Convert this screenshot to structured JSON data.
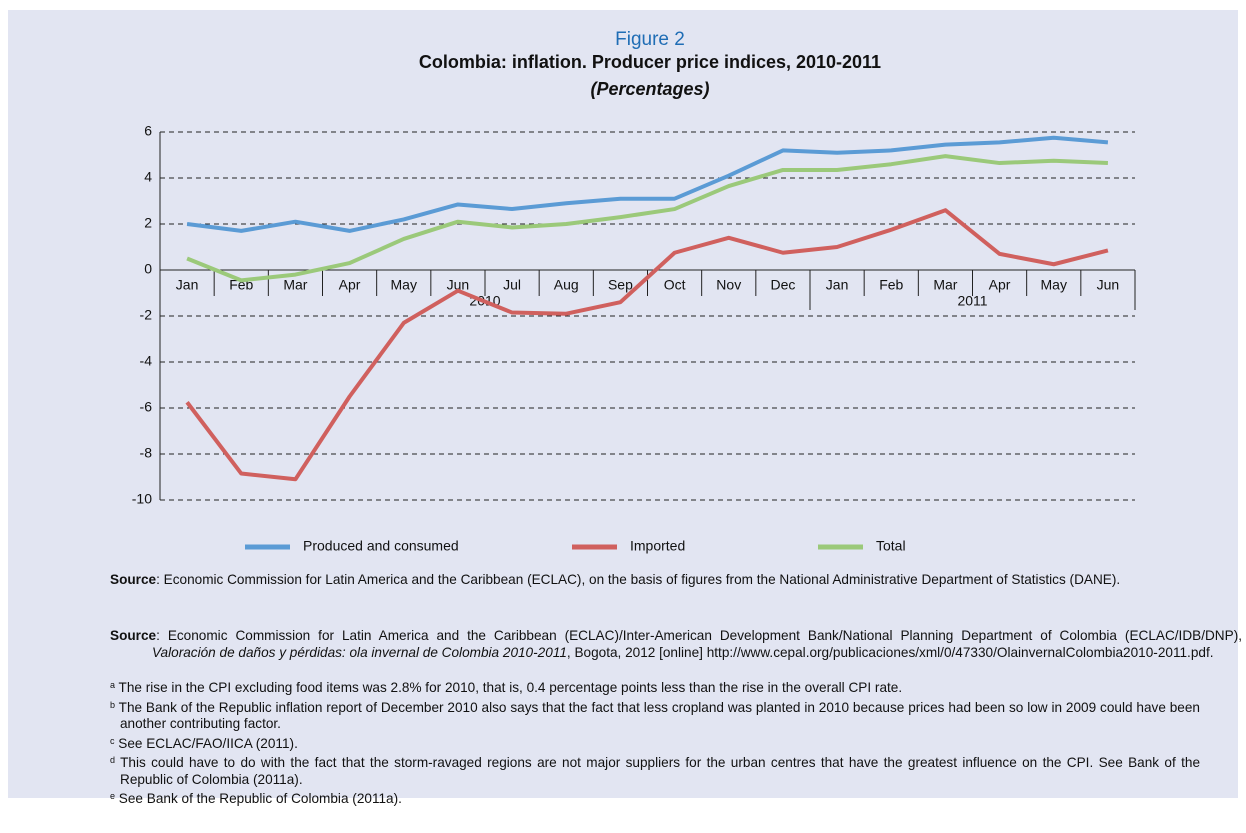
{
  "chart_data": {
    "type": "line",
    "label": "Figure 2",
    "title": "Colombia: inflation. Producer price indices, 2010-2011",
    "subtitle": "(Percentages)",
    "groups": [
      {
        "name": "2010",
        "categories": [
          "Jan",
          "Feb",
          "Mar",
          "Apr",
          "May",
          "Jun",
          "Jul",
          "Aug",
          "Sep",
          "Oct",
          "Nov",
          "Dec"
        ]
      },
      {
        "name": "2011",
        "categories": [
          "Jan",
          "Feb",
          "Mar",
          "Apr",
          "May",
          "Jun"
        ]
      }
    ],
    "series": [
      {
        "name": "Produced and consumed",
        "color": "#5b9bd5",
        "values": [
          2.0,
          1.7,
          2.1,
          1.7,
          2.2,
          2.85,
          2.65,
          2.9,
          3.1,
          3.1,
          4.1,
          5.2,
          5.1,
          5.2,
          5.45,
          5.55,
          5.75,
          5.55
        ]
      },
      {
        "name": "Imported",
        "color": "#d0605e",
        "values": [
          -5.75,
          -8.85,
          -9.1,
          -5.5,
          -2.3,
          -0.9,
          -1.85,
          -1.9,
          -1.4,
          0.75,
          1.4,
          0.75,
          1.0,
          1.75,
          2.6,
          0.7,
          0.25,
          0.85
        ]
      },
      {
        "name": "Total",
        "color": "#9bc97a",
        "values": [
          0.5,
          -0.45,
          -0.2,
          0.3,
          1.35,
          2.1,
          1.85,
          2.0,
          2.3,
          2.65,
          3.65,
          4.35,
          4.35,
          4.6,
          4.95,
          4.65,
          4.75,
          4.65
        ]
      }
    ],
    "ylim": [
      -10,
      6
    ],
    "yticks": [
      -10,
      -8,
      -6,
      -4,
      -2,
      0,
      2,
      4,
      6
    ],
    "grid": true,
    "legend": "bottom"
  },
  "source1": {
    "label": "Source",
    "text": ": Economic Commission for Latin America and the Caribbean (ECLAC), on the basis of figures from the National Administrative Department of Statistics (DANE)."
  },
  "source2": {
    "label": "Source",
    "before": ": Economic Commission for Latin America and the Caribbean (ECLAC)/Inter-American Development Bank/National Planning Department of Colombia (ECLAC/IDB/DNP), ",
    "title": "Valoración de daños y pérdidas: ola invernal de Colombia 2010-2011",
    "after": ", Bogota, 2012 [online] http://www.cepal.org/publicaciones/xml/0/47330/OlainvernalColombia2010-2011.pdf."
  },
  "notes": [
    {
      "mark": "a",
      "text": "The rise in the CPI excluding food items was 2.8% for 2010, that is, 0.4 percentage points less than the rise in the overall CPI rate."
    },
    {
      "mark": "b",
      "text": "The Bank of the Republic inflation report of December 2010 also says that the fact that less cropland was planted in 2010 because prices had been so low in 2009 could have been another contributing factor."
    },
    {
      "mark": "c",
      "text": "See ECLAC/FAO/IICA (2011)."
    },
    {
      "mark": "d",
      "text": "This could have to do with the fact that the storm-ravaged regions are not major suppliers for the urban centres that have the greatest influence on the CPI. See Bank of the Republic of Colombia (2011a)."
    },
    {
      "mark": "e",
      "text": "See Bank of the Republic of Colombia (2011a)."
    }
  ]
}
